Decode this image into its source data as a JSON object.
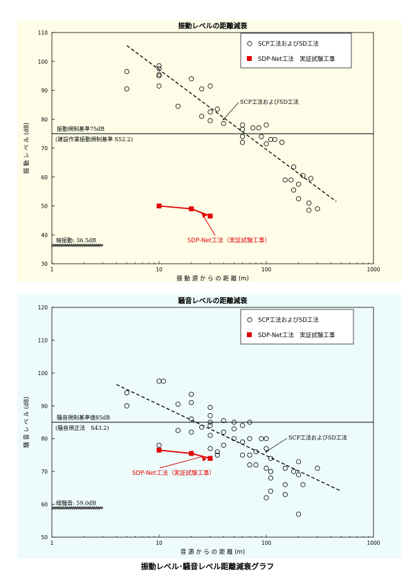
{
  "caption": "振動レベル･騒音レベル距離減衰グラフ",
  "colors": {
    "vib_bg": "#fdfde8",
    "noise_bg": "#eefbfb",
    "sdp": "#e00000",
    "trend": "#000000"
  },
  "chart_data": [
    {
      "type": "scatter",
      "title": "振動レベルの距離減衰",
      "xlabel": "振 動 源 か ら の 距 離 (m)",
      "ylabel": "振 動 レ ベ ル (dB)",
      "xscale": "log",
      "xlim": [
        1,
        1000
      ],
      "ylim": [
        30,
        110
      ],
      "x_ticks": [
        1,
        10,
        100,
        1000
      ],
      "y_ticks": [
        30,
        40,
        50,
        60,
        70,
        80,
        90,
        100,
        110
      ],
      "grid": false,
      "legend": {
        "position": "top-right",
        "items": [
          {
            "label": "SCP工法およびSD工法",
            "marker": "open-circle"
          },
          {
            "label": "SDP-Net工法　実証試験工事",
            "marker": "red-square"
          }
        ]
      },
      "series": [
        {
          "name": "SCP工法およびSD工法",
          "marker": "open-circle",
          "points": [
            [
              5,
              96.5
            ],
            [
              5,
              90.5
            ],
            [
              10,
              98.5
            ],
            [
              10,
              97.5
            ],
            [
              10,
              95.5
            ],
            [
              10,
              95
            ],
            [
              10,
              91.5
            ],
            [
              15,
              84.5
            ],
            [
              20,
              94
            ],
            [
              25,
              90.5
            ],
            [
              25,
              81
            ],
            [
              30,
              91.5
            ],
            [
              30,
              82.5
            ],
            [
              30,
              79.5
            ],
            [
              35,
              83.5
            ],
            [
              40,
              78.5
            ],
            [
              60,
              78
            ],
            [
              60,
              76.5
            ],
            [
              60,
              74
            ],
            [
              60,
              72
            ],
            [
              75,
              77
            ],
            [
              85,
              77
            ],
            [
              90,
              74
            ],
            [
              100,
              78
            ],
            [
              100,
              71.5
            ],
            [
              110,
              73
            ],
            [
              120,
              73
            ],
            [
              140,
              72
            ],
            [
              150,
              59
            ],
            [
              170,
              59
            ],
            [
              180,
              63.5
            ],
            [
              180,
              55.5
            ],
            [
              200,
              57.5
            ],
            [
              200,
              52.5
            ],
            [
              220,
              60.5
            ],
            [
              250,
              51
            ],
            [
              250,
              48.5
            ],
            [
              260,
              59.5
            ],
            [
              300,
              49
            ]
          ]
        },
        {
          "name": "SDP-Net工法（実証試験工事）",
          "marker": "red-square",
          "points": [
            [
              10,
              50
            ],
            [
              20,
              49
            ],
            [
              30,
              46.5
            ]
          ]
        }
      ],
      "trend_line": {
        "from": [
          5,
          105.5
        ],
        "to": [
          450,
          51.5
        ]
      },
      "reference_line": {
        "value": 75,
        "labels": [
          "振動規制基準75dB",
          "(建設作業振動規制基準 S52.2)"
        ]
      },
      "background_level": {
        "value": 36.5,
        "label": "暗振動: 36.5dB"
      },
      "annotations": [
        {
          "text": "SCP工法およびSD工法",
          "target": [
            40,
            80
          ]
        },
        {
          "text": "SDP-Net工法（実証試験工事）",
          "target": [
            25,
            47.5
          ]
        }
      ]
    },
    {
      "type": "scatter",
      "title": "騒音レベルの距離減衰",
      "xlabel": "音 源 か ら の 距 離 (m)",
      "ylabel": "騒 音 レ ベ ル (dB)",
      "xscale": "log",
      "xlim": [
        1,
        1000
      ],
      "ylim": [
        50,
        120
      ],
      "x_ticks": [
        1,
        10,
        100,
        1000
      ],
      "y_ticks": [
        50,
        60,
        70,
        80,
        90,
        100,
        110,
        120
      ],
      "grid": false,
      "legend": {
        "position": "top-right",
        "items": [
          {
            "label": "SCP工法およびSD工法",
            "marker": "open-circle"
          },
          {
            "label": "SDP-Net工法　実証試験工事",
            "marker": "red-square"
          }
        ]
      },
      "series": [
        {
          "name": "SCP工法およびSD工法",
          "marker": "open-circle",
          "points": [
            [
              5,
              94
            ],
            [
              5,
              90
            ],
            [
              10,
              97.5
            ],
            [
              10,
              78
            ],
            [
              11,
              97.5
            ],
            [
              15,
              90.5
            ],
            [
              15,
              82.5
            ],
            [
              20,
              93.5
            ],
            [
              20,
              91
            ],
            [
              20,
              86
            ],
            [
              20,
              82
            ],
            [
              25,
              83.5
            ],
            [
              30,
              89.5
            ],
            [
              30,
              87
            ],
            [
              30,
              85
            ],
            [
              30,
              84
            ],
            [
              30,
              81
            ],
            [
              30,
              77
            ],
            [
              35,
              76
            ],
            [
              35,
              75
            ],
            [
              40,
              85.5
            ],
            [
              40,
              82
            ],
            [
              40,
              78
            ],
            [
              50,
              85
            ],
            [
              50,
              83
            ],
            [
              50,
              80
            ],
            [
              60,
              84
            ],
            [
              60,
              79
            ],
            [
              60,
              75
            ],
            [
              70,
              85
            ],
            [
              70,
              80
            ],
            [
              70,
              75
            ],
            [
              70,
              72
            ],
            [
              80,
              76
            ],
            [
              80,
              72
            ],
            [
              90,
              80
            ],
            [
              100,
              80
            ],
            [
              100,
              77
            ],
            [
              100,
              71
            ],
            [
              100,
              62
            ],
            [
              110,
              74
            ],
            [
              110,
              70
            ],
            [
              110,
              68
            ],
            [
              110,
              64
            ],
            [
              150,
              71
            ],
            [
              150,
              66
            ],
            [
              150,
              63
            ],
            [
              180,
              70
            ],
            [
              200,
              69
            ],
            [
              200,
              73
            ],
            [
              200,
              57
            ],
            [
              220,
              66
            ],
            [
              300,
              71
            ]
          ]
        },
        {
          "name": "SDP-Net工法（実証試験工事）",
          "marker": "red-square",
          "points": [
            [
              10,
              76.5
            ],
            [
              20,
              75.5
            ],
            [
              30,
              74
            ]
          ]
        }
      ],
      "trend_line": {
        "from": [
          4,
          96.5
        ],
        "to": [
          500,
          64
        ]
      },
      "reference_line": {
        "value": 85,
        "labels": [
          "騒音規制基準値85dB",
          "(騒音規正法　S43.2)"
        ]
      },
      "background_level": {
        "value": 59,
        "label": "暗騒音: 59.0dB"
      },
      "annotations": [
        {
          "text": "SCP工法およびSD工法",
          "target": [
            100,
            76
          ]
        },
        {
          "text": "SDP-Net工法（実証試験工事）",
          "target": [
            25,
            74.5
          ]
        }
      ]
    }
  ]
}
